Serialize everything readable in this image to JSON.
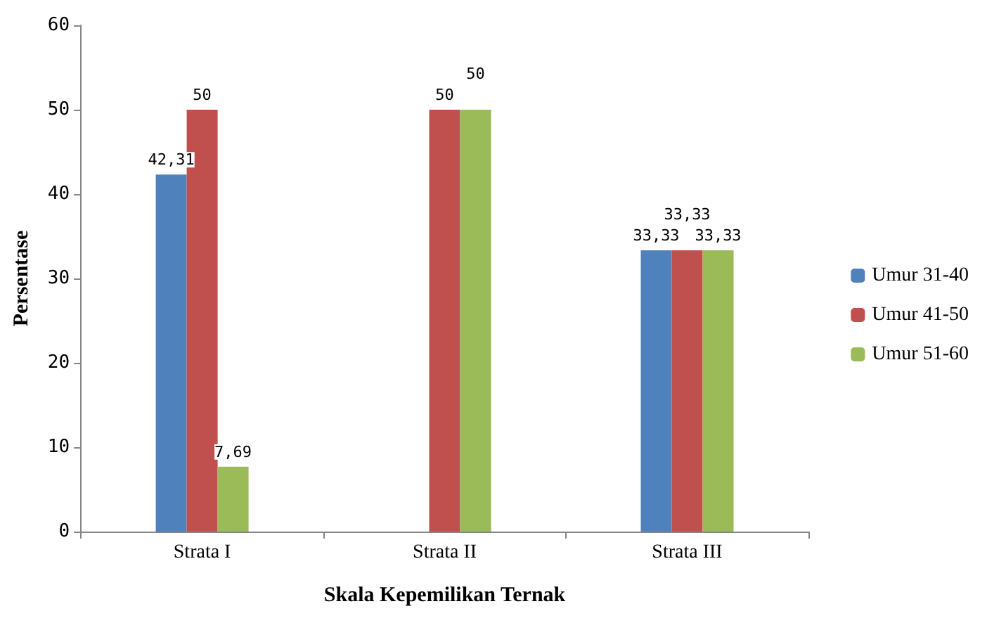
{
  "chart_data": {
    "type": "bar",
    "xlabel": "Skala Kepemilikan Ternak",
    "ylabel": "Persentase",
    "categories": [
      "Strata I",
      "Strata II",
      "Strata III"
    ],
    "series": [
      {
        "name": "Umur 31-40",
        "color": "#4f81bd",
        "values": [
          42.31,
          null,
          33.33
        ],
        "value_labels": [
          "42,31",
          null,
          "33,33"
        ]
      },
      {
        "name": "Umur 41-50",
        "color": "#c0504d",
        "values": [
          50,
          50,
          33.33
        ],
        "value_labels": [
          "50",
          "50",
          "33,33"
        ]
      },
      {
        "name": "Umur 51-60",
        "color": "#9bbb59",
        "values": [
          7.69,
          50,
          33.33
        ],
        "value_labels": [
          "7,69",
          "50",
          "33,33"
        ]
      }
    ],
    "ylim": [
      0,
      60
    ],
    "yticks": [
      0,
      10,
      20,
      30,
      40,
      50,
      60
    ],
    "grid": false,
    "legend": "right"
  }
}
